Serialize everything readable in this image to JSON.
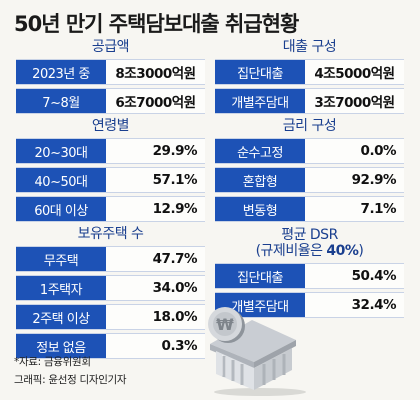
{
  "title": "50년 만기 주택담보대출 취급현황",
  "sections": {
    "supply": {
      "heading": "공급액",
      "rows": [
        {
          "label": "2023년 중",
          "value": "8조3000억원"
        },
        {
          "label": "7~8월",
          "value": "6조7000억원"
        }
      ]
    },
    "loan_type": {
      "heading": "대출 구성",
      "rows": [
        {
          "label": "집단대출",
          "value": "4조5000억원"
        },
        {
          "label": "개별주담대",
          "value": "3조7000억원"
        }
      ]
    },
    "age": {
      "heading": "연령별",
      "rows": [
        {
          "label": "20~30대",
          "value": "29.9%"
        },
        {
          "label": "40~50대",
          "value": "57.1%"
        },
        {
          "label": "60대 이상",
          "value": "12.9%"
        }
      ]
    },
    "rate": {
      "heading": "금리 구성",
      "rows": [
        {
          "label": "순수고정",
          "value": "0.0%"
        },
        {
          "label": "혼합형",
          "value": "92.9%"
        },
        {
          "label": "변동형",
          "value": "7.1%"
        }
      ]
    },
    "houses": {
      "heading": "보유주택 수",
      "rows": [
        {
          "label": "무주택",
          "value": "47.7%"
        },
        {
          "label": "1주택자",
          "value": "34.0%"
        },
        {
          "label": "2주택 이상",
          "value": "18.0%"
        },
        {
          "label": "정보 없음",
          "value": "0.3%"
        }
      ]
    },
    "dsr": {
      "heading_line1": "평균 DSR",
      "heading_line2_prefix": "(규제비율은 ",
      "heading_line2_highlight": "40%",
      "heading_line2_suffix": ")",
      "rows": [
        {
          "label": "집단대출",
          "value": "50.4%"
        },
        {
          "label": "개별주담대",
          "value": "32.4%"
        }
      ]
    }
  },
  "footnotes": {
    "source": "*자료: 금융위원회",
    "credit": "그래픽: 윤선정 디자인기자"
  },
  "illustration": {
    "icon": "bank-building-icon",
    "coin_symbol": "₩"
  }
}
